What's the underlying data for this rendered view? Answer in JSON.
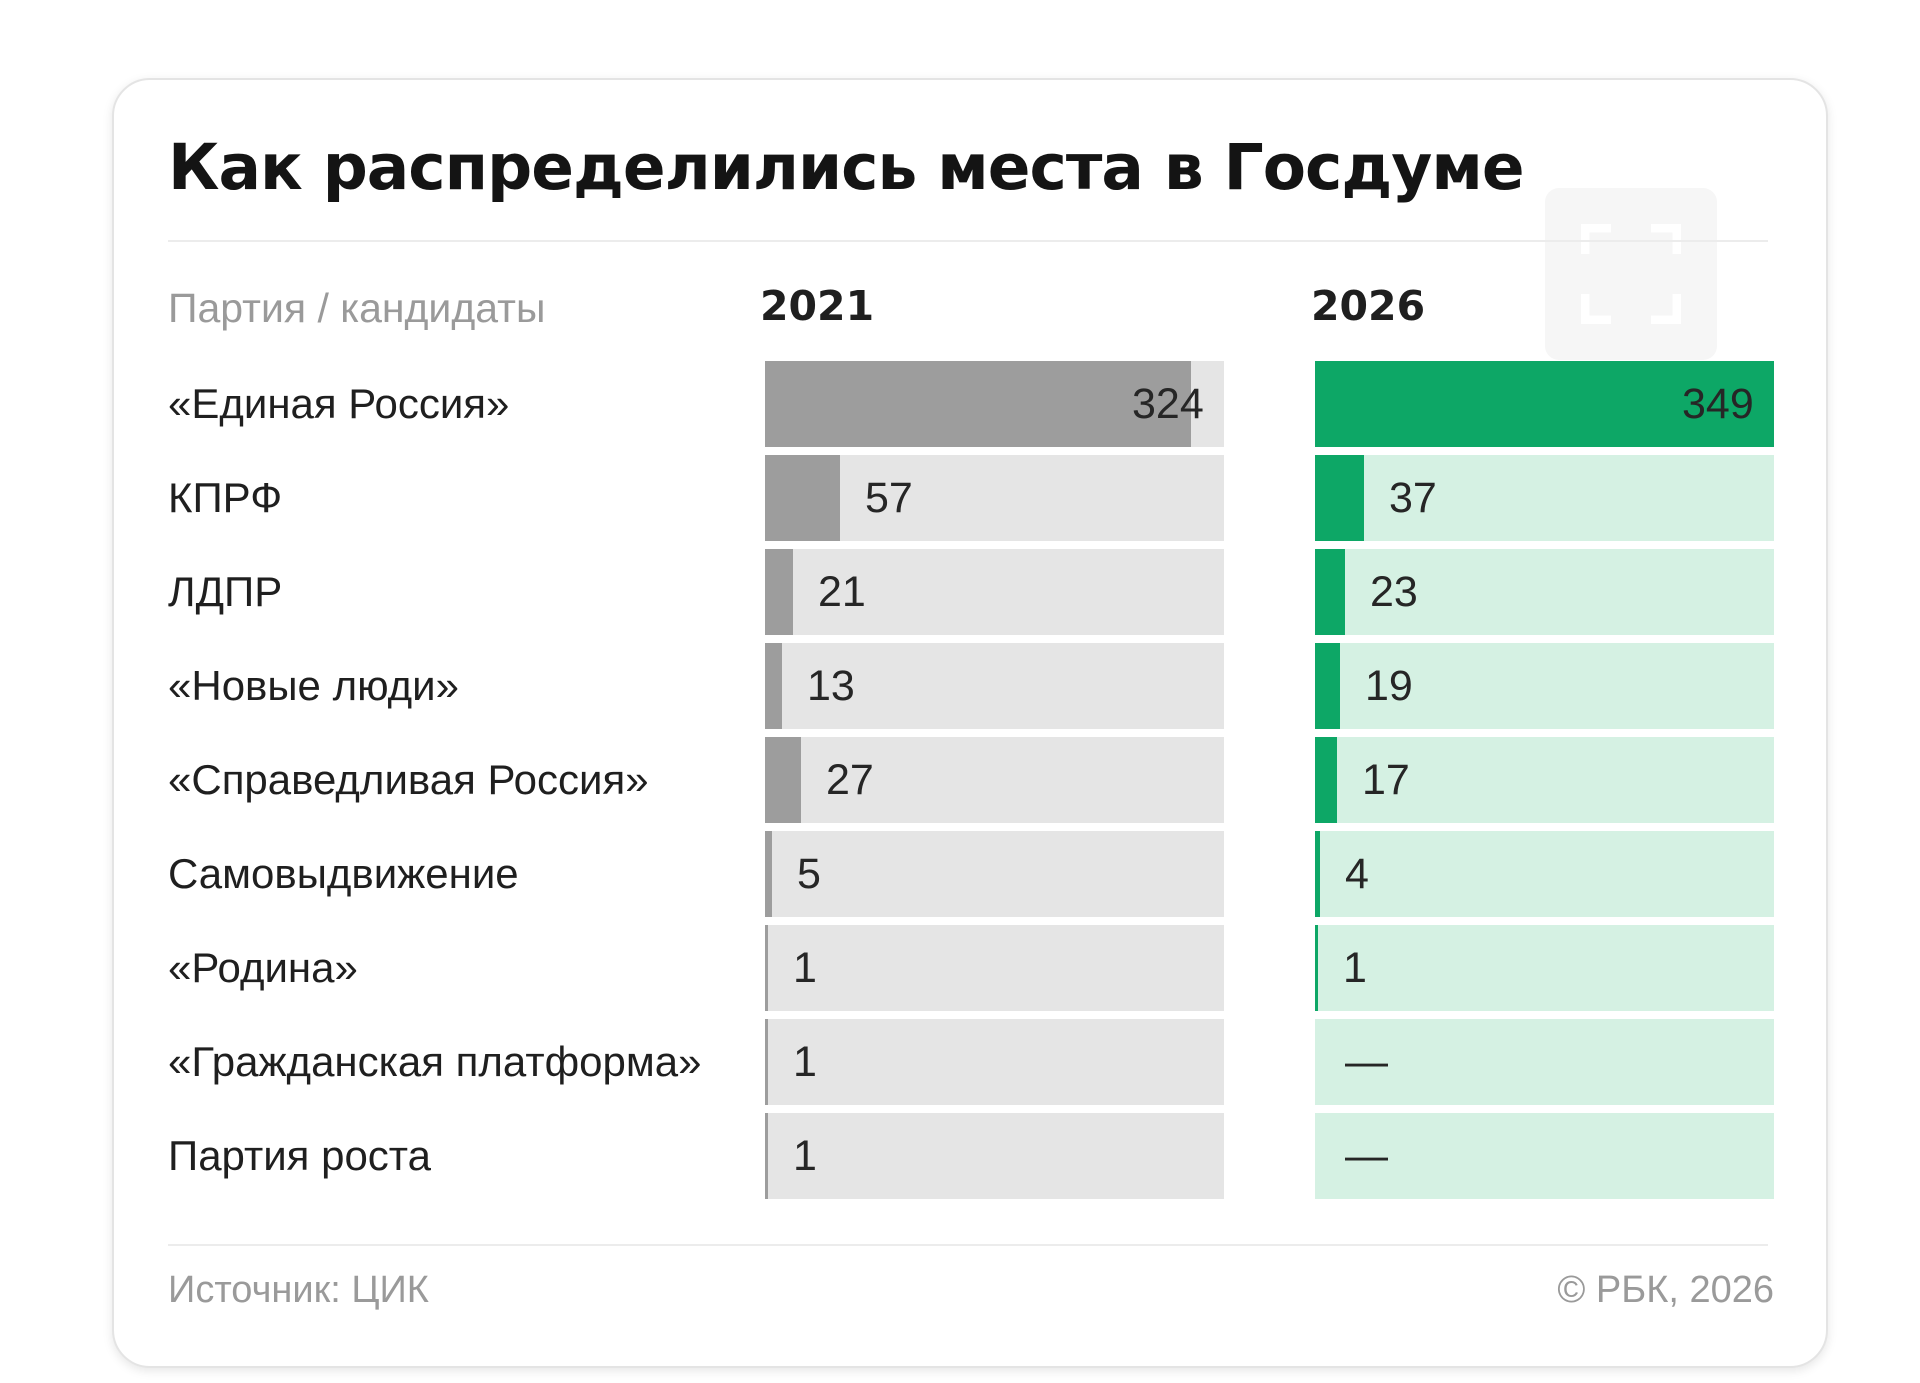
{
  "title": "Как распределились места в Госдуме",
  "icons": {
    "expand": "expand-icon"
  },
  "colors": {
    "bar_2021": "#9d9d9d",
    "track_2021": "#e5e5e5",
    "bar_2026": "#0da766",
    "track_2026": "#d5f1e3"
  },
  "chart_data": {
    "type": "bar",
    "title": "Как распределились места в Госдуме",
    "category_header": "Партия / кандидаты",
    "categories": [
      "«Единая Россия»",
      "КПРФ",
      "ЛДПР",
      "«Новые люди»",
      "«Справедливая Россия»",
      "Самовыдвижение",
      "«Родина»",
      "«Гражданская платформа»",
      "Партия роста"
    ],
    "series": [
      {
        "name": "2021",
        "values": [
          324,
          57,
          21,
          13,
          27,
          5,
          1,
          1,
          1
        ]
      },
      {
        "name": "2026",
        "values": [
          349,
          37,
          23,
          19,
          17,
          4,
          1,
          null,
          null
        ]
      }
    ],
    "missing_label": "—",
    "orientation": "horizontal",
    "grid": false
  },
  "footer": {
    "source": "Источник: ЦИК",
    "copyright": "© РБК, 2026"
  }
}
